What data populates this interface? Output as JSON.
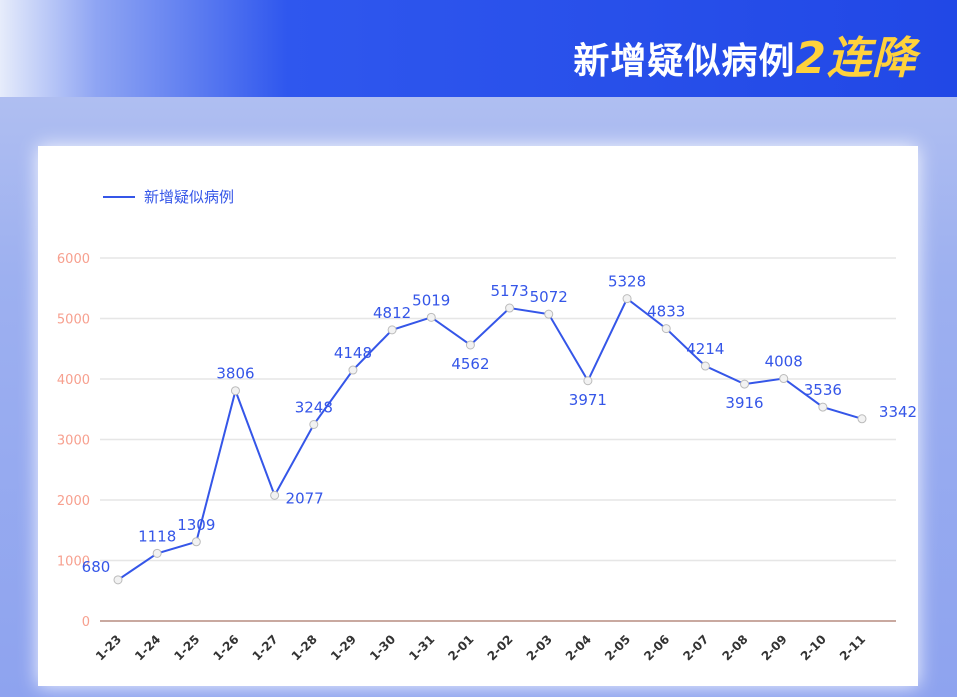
{
  "header": {
    "title_main": "新增疑似病例",
    "title_highlight": "2连降"
  },
  "chart_data": {
    "type": "line",
    "title": "",
    "legend": {
      "entries": [
        "新增疑似病例"
      ],
      "placement": "top-left"
    },
    "categories": [
      "1-23",
      "1-24",
      "1-25",
      "1-26",
      "1-27",
      "1-28",
      "1-29",
      "1-30",
      "1-31",
      "2-01",
      "2-02",
      "2-03",
      "2-04",
      "2-05",
      "2-06",
      "2-07",
      "2-08",
      "2-09",
      "2-10",
      "2-11"
    ],
    "series": [
      {
        "name": "新增疑似病例",
        "color": "#3556e8",
        "values": [
          680,
          1118,
          1309,
          3806,
          2077,
          3248,
          4148,
          4812,
          5019,
          4562,
          5173,
          5072,
          3971,
          5328,
          4833,
          4214,
          3916,
          4008,
          3536,
          3342
        ]
      }
    ],
    "ylim": [
      0,
      6000
    ],
    "yticks": [
      0,
      1000,
      2000,
      3000,
      4000,
      5000,
      6000
    ],
    "grid": true,
    "xlabel": "",
    "ylabel": ""
  }
}
